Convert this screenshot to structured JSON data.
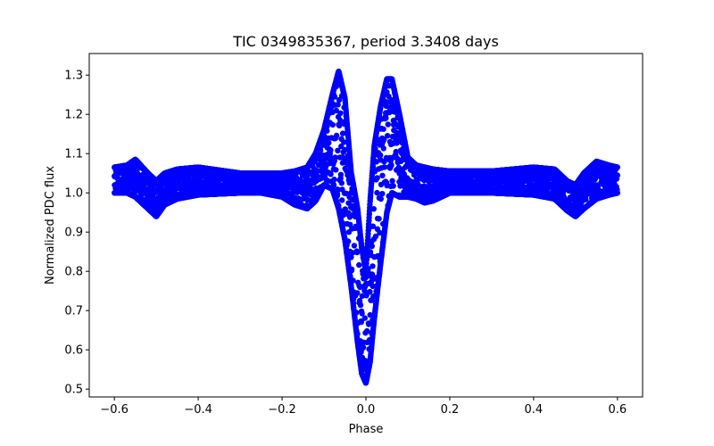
{
  "chart_data": {
    "type": "scatter",
    "title": "TIC 0349835367, period 3.3408 days",
    "xlabel": "Phase",
    "ylabel": "Normalized PDC flux",
    "xlim": [
      -0.66,
      0.66
    ],
    "ylim": [
      0.48,
      1.355
    ],
    "xticks": [
      -0.6,
      -0.4,
      -0.2,
      0.0,
      0.2,
      0.4,
      0.6
    ],
    "xtick_labels": [
      "−0.6",
      "−0.4",
      "−0.2",
      "0.0",
      "0.2",
      "0.4",
      "0.6"
    ],
    "yticks": [
      0.5,
      0.6,
      0.7,
      0.8,
      0.9,
      1.0,
      1.1,
      1.2,
      1.3
    ],
    "ytick_labels": [
      "0.5",
      "0.6",
      "0.7",
      "0.8",
      "0.9",
      "1.0",
      "1.1",
      "1.2",
      "1.3"
    ],
    "grid": false,
    "marker_color": "#0000ff",
    "phase_range": [
      -0.6,
      0.6
    ],
    "envelope_points": {
      "phase": [
        -0.6,
        -0.57,
        -0.55,
        -0.52,
        -0.5,
        -0.48,
        -0.45,
        -0.4,
        -0.3,
        -0.25,
        -0.2,
        -0.17,
        -0.14,
        -0.12,
        -0.1,
        -0.08,
        -0.065,
        -0.05,
        -0.035,
        -0.02,
        -0.01,
        0.0,
        0.01,
        0.02,
        0.035,
        0.05,
        0.062,
        0.08,
        0.1,
        0.12,
        0.14,
        0.16,
        0.2,
        0.3,
        0.4,
        0.45,
        0.48,
        0.5,
        0.52,
        0.55,
        0.58,
        0.6
      ],
      "upper": [
        1.065,
        1.07,
        1.085,
        1.05,
        1.03,
        1.05,
        1.06,
        1.065,
        1.05,
        1.05,
        1.05,
        1.055,
        1.065,
        1.1,
        1.16,
        1.25,
        1.31,
        1.24,
        1.05,
        0.96,
        0.86,
        0.8,
        0.98,
        1.12,
        1.22,
        1.29,
        1.29,
        1.2,
        1.09,
        1.07,
        1.065,
        1.06,
        1.055,
        1.055,
        1.065,
        1.06,
        1.03,
        1.02,
        1.05,
        1.08,
        1.07,
        1.065
      ],
      "lower": [
        1.0,
        1.0,
        0.99,
        0.96,
        0.94,
        0.97,
        0.985,
        0.995,
        1.0,
        1.0,
        0.99,
        0.97,
        0.96,
        0.98,
        1.02,
        1.01,
        0.96,
        0.88,
        0.76,
        0.62,
        0.54,
        0.515,
        0.57,
        0.68,
        0.82,
        0.95,
        1.0,
        0.99,
        0.99,
        0.985,
        0.975,
        0.98,
        1.0,
        1.0,
        0.995,
        0.985,
        0.955,
        0.94,
        0.96,
        0.985,
        0.995,
        1.0
      ]
    }
  }
}
